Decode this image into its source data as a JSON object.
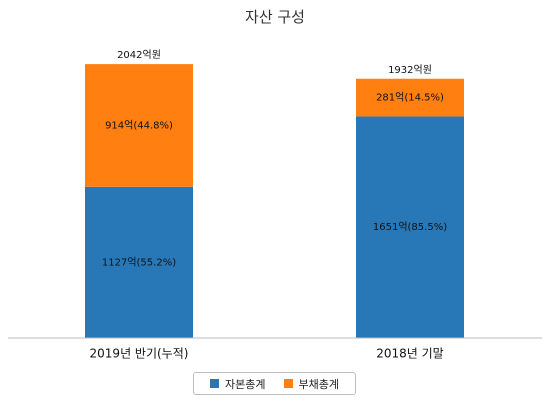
{
  "chart_data": {
    "type": "bar",
    "stacked": true,
    "title": "자산 구성",
    "categories": [
      "2019년 반기(누적)",
      "2018년 기말"
    ],
    "series": [
      {
        "name": "자본총계",
        "color": "#2878b8",
        "values": [
          1127,
          1651
        ],
        "labels": [
          "1127억(55.2%)",
          "1651억(85.5%)"
        ]
      },
      {
        "name": "부채총계",
        "color": "#ff7f10",
        "values": [
          914,
          281
        ],
        "labels": [
          "914억(44.8%)",
          "281억(14.5%)"
        ]
      }
    ],
    "totals": [
      2042,
      1932
    ],
    "total_labels": [
      "2042억원",
      "1932억원"
    ],
    "ylim": [
      0,
      2042
    ],
    "grid": false,
    "legend_position": "bottom"
  }
}
